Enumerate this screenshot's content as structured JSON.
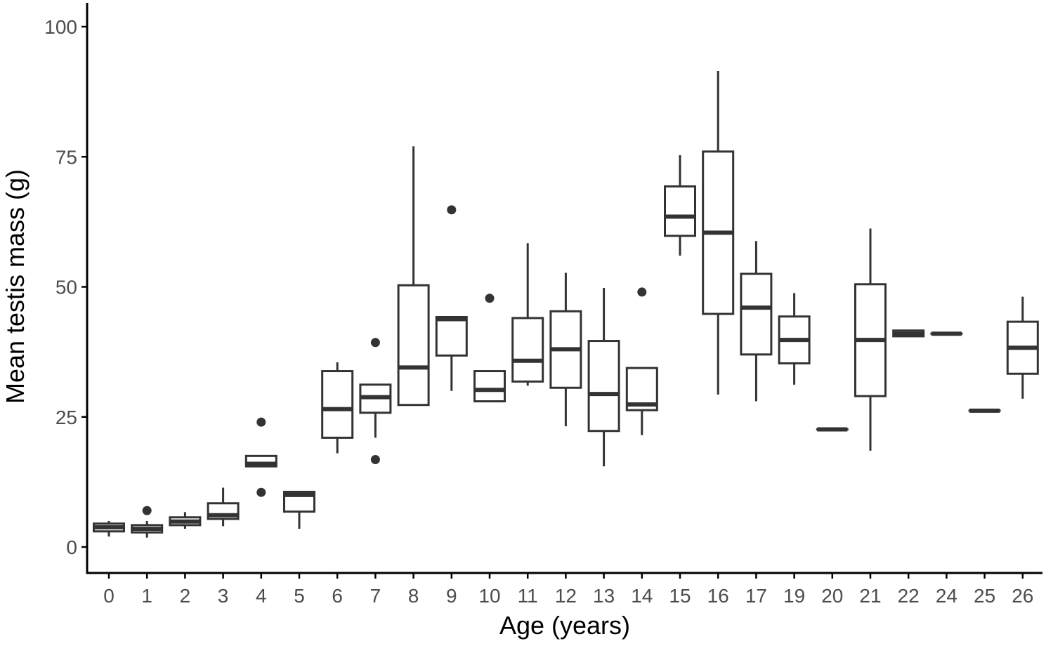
{
  "chart_data": {
    "type": "boxplot",
    "title": "",
    "xlabel": "Age (years)",
    "ylabel": "Mean testis mass (g)",
    "ylim": [
      -5,
      105
    ],
    "yticks": [
      0,
      25,
      50,
      75,
      100
    ],
    "grid": false,
    "legend": "none",
    "colors": {
      "stroke": "#333333",
      "axis": "#000000",
      "tick_text": "#4d4d4d",
      "background": "#ffffff"
    },
    "categories": [
      "0",
      "1",
      "2",
      "3",
      "4",
      "5",
      "6",
      "7",
      "8",
      "9",
      "10",
      "11",
      "12",
      "13",
      "14",
      "15",
      "16",
      "17",
      "19",
      "20",
      "21",
      "22",
      "24",
      "25",
      "26"
    ],
    "boxes": [
      {
        "x": "0",
        "min": 2.0,
        "q1": 3.0,
        "median": 3.8,
        "q3": 4.5,
        "max": 5.0,
        "outliers": []
      },
      {
        "x": "1",
        "min": 1.8,
        "q1": 2.8,
        "median": 3.5,
        "q3": 4.2,
        "max": 5.0,
        "outliers": [
          7.0
        ]
      },
      {
        "x": "2",
        "min": 3.5,
        "q1": 4.2,
        "median": 4.9,
        "q3": 5.7,
        "max": 6.7,
        "outliers": []
      },
      {
        "x": "3",
        "min": 4.0,
        "q1": 5.4,
        "median": 6.1,
        "q3": 8.4,
        "max": 11.4,
        "outliers": []
      },
      {
        "x": "4",
        "min": 15.5,
        "q1": 15.5,
        "median": 16.0,
        "q3": 17.5,
        "max": 17.5,
        "outliers": [
          24.0,
          10.5
        ]
      },
      {
        "x": "5",
        "min": 3.5,
        "q1": 6.8,
        "median": 10.0,
        "q3": 10.6,
        "max": 10.6,
        "outliers": []
      },
      {
        "x": "6",
        "min": 18.0,
        "q1": 21.0,
        "median": 26.5,
        "q3": 33.8,
        "max": 35.5,
        "outliers": []
      },
      {
        "x": "7",
        "min": 21.0,
        "q1": 25.8,
        "median": 28.8,
        "q3": 31.2,
        "max": 31.2,
        "outliers": [
          39.3,
          16.8
        ]
      },
      {
        "x": "8",
        "min": 27.3,
        "q1": 27.3,
        "median": 34.5,
        "q3": 50.3,
        "max": 77.0,
        "outliers": []
      },
      {
        "x": "9",
        "min": 30.0,
        "q1": 36.8,
        "median": 43.8,
        "q3": 44.2,
        "max": 44.2,
        "outliers": [
          64.8
        ]
      },
      {
        "x": "10",
        "min": 28.0,
        "q1": 28.0,
        "median": 30.2,
        "q3": 33.8,
        "max": 33.8,
        "outliers": [
          47.8
        ]
      },
      {
        "x": "11",
        "min": 31.0,
        "q1": 31.8,
        "median": 35.8,
        "q3": 44.0,
        "max": 58.4,
        "outliers": []
      },
      {
        "x": "12",
        "min": 23.2,
        "q1": 30.6,
        "median": 38.0,
        "q3": 45.3,
        "max": 52.7,
        "outliers": []
      },
      {
        "x": "13",
        "min": 15.5,
        "q1": 22.3,
        "median": 29.4,
        "q3": 39.6,
        "max": 49.8,
        "outliers": []
      },
      {
        "x": "14",
        "min": 21.5,
        "q1": 26.3,
        "median": 27.4,
        "q3": 34.4,
        "max": 34.4,
        "outliers": [
          49.0
        ]
      },
      {
        "x": "15",
        "min": 56.0,
        "q1": 59.8,
        "median": 63.5,
        "q3": 69.3,
        "max": 75.3,
        "outliers": []
      },
      {
        "x": "16",
        "min": 29.3,
        "q1": 44.8,
        "median": 60.4,
        "q3": 76.0,
        "max": 91.5,
        "outliers": []
      },
      {
        "x": "17",
        "min": 28.0,
        "q1": 37.0,
        "median": 46.0,
        "q3": 52.5,
        "max": 58.8,
        "outliers": []
      },
      {
        "x": "19",
        "min": 31.2,
        "q1": 35.3,
        "median": 39.8,
        "q3": 44.3,
        "max": 48.8,
        "outliers": []
      },
      {
        "x": "20",
        "min": 22.6,
        "q1": 22.6,
        "median": 22.6,
        "q3": 22.6,
        "max": 22.6,
        "outliers": []
      },
      {
        "x": "21",
        "min": 18.5,
        "q1": 29.0,
        "median": 39.8,
        "q3": 50.5,
        "max": 61.2,
        "outliers": []
      },
      {
        "x": "22",
        "min": 40.5,
        "q1": 40.5,
        "median": 41.0,
        "q3": 41.6,
        "max": 41.6,
        "outliers": []
      },
      {
        "x": "24",
        "min": 41.0,
        "q1": 41.0,
        "median": 41.0,
        "q3": 41.0,
        "max": 41.0,
        "outliers": []
      },
      {
        "x": "25",
        "min": 26.2,
        "q1": 26.2,
        "median": 26.2,
        "q3": 26.2,
        "max": 26.2,
        "outliers": []
      },
      {
        "x": "26",
        "min": 28.5,
        "q1": 33.3,
        "median": 38.3,
        "q3": 43.3,
        "max": 48.1,
        "outliers": []
      }
    ]
  }
}
